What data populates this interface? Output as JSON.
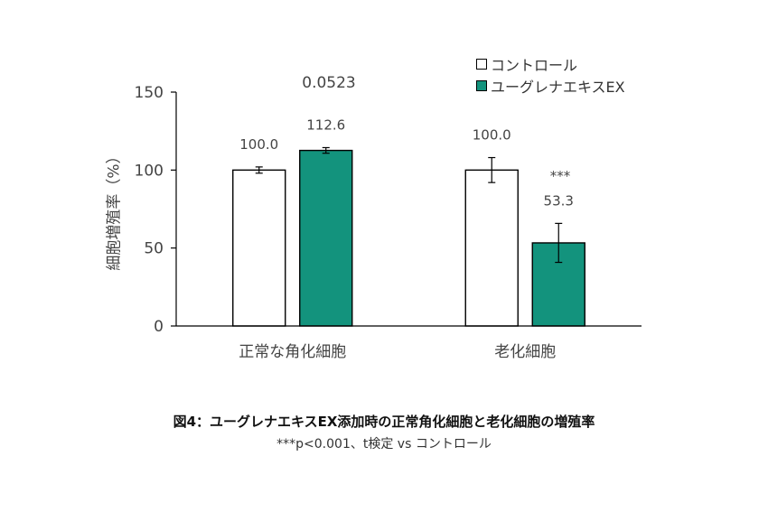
{
  "chart_data": {
    "type": "bar",
    "categories": [
      "正常な角化細胞",
      "老化細胞"
    ],
    "series": [
      {
        "name": "コントロール",
        "color": "#ffffff",
        "values": [
          100.0,
          100.0
        ],
        "errors": [
          2.0,
          8.0
        ],
        "labels": [
          "100.0",
          "100.0"
        ]
      },
      {
        "name": "ユーグレナエキスEX",
        "color": "#13937d",
        "values": [
          112.6,
          53.3
        ],
        "errors": [
          1.8,
          12.5
        ],
        "labels": [
          "112.6",
          "53.3"
        ]
      }
    ],
    "ylabel": "細胞増殖率（%）",
    "ylim": [
      0,
      150
    ],
    "yticks": [
      0,
      50,
      100,
      150
    ],
    "annotations": [
      "0.0523",
      "***"
    ],
    "legend_position": "top-right",
    "title": "図4：ユーグレナエキスEX添加時の正常角化細胞と老化細胞の増殖率",
    "note": "***p<0.001、t検定 vs コントロール"
  }
}
